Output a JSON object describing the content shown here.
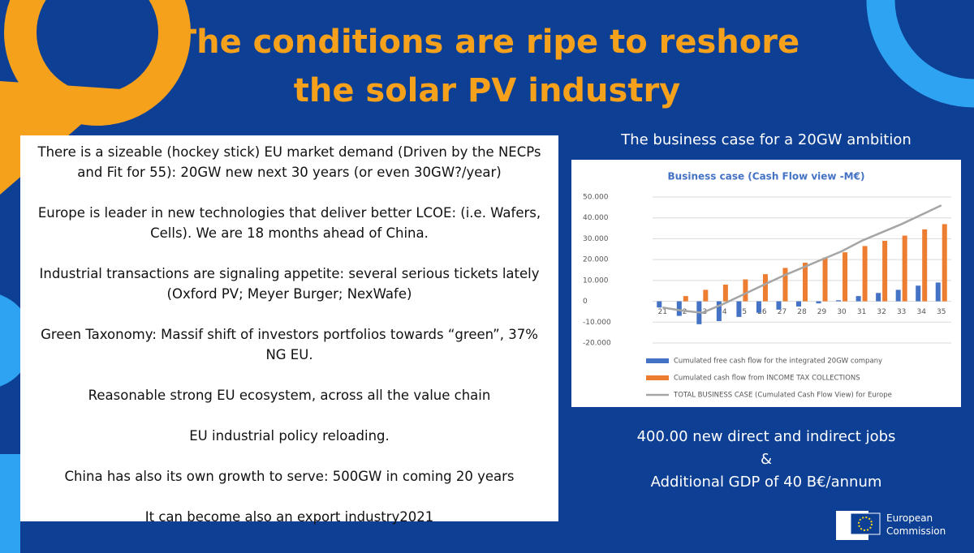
{
  "header": {
    "title_lines": [
      "The conditions are ripe to reshore",
      "the solar PV industry"
    ]
  },
  "text_box": {
    "paragraphs": [
      "There is a sizeable (hockey stick) EU market demand (Driven by the NECPs and Fit for 55): 20GW new next 30 years (or even 30GW?/year)",
      "Europe is leader in new technologies that deliver better LCOE: (i.e. Wafers, Cells). We are 18 months ahead of China.",
      "Industrial transactions are signaling appetite: several serious tickets lately (Oxford PV; Meyer Burger; NexWafe)",
      "Green Taxonomy: Massif shift of investors portfolios towards “green”, 37% NG EU.",
      "Reasonable strong EU ecosystem, across all the value chain",
      "EU industrial policy reloading.",
      "China has also its own growth to serve: 500GW in coming 20 years",
      "It can become also an export industry2021"
    ]
  },
  "chart_heading": "The business case for a 20GW ambition",
  "chart_data": {
    "type": "bar-line",
    "title": "Business case (Cash Flow view -M€)",
    "categories": [
      "21",
      "22",
      "23",
      "24",
      "25",
      "26",
      "27",
      "28",
      "29",
      "30",
      "31",
      "32",
      "33",
      "34",
      "35"
    ],
    "series": [
      {
        "name": "Cumulated free cash flow for the integrated 20GW company",
        "type": "bar",
        "color": "#4472c4",
        "values": [
          -3000,
          -7000,
          -11000,
          -9500,
          -7500,
          -5500,
          -4000,
          -2500,
          -1000,
          500,
          2500,
          4000,
          5500,
          7500,
          9000
        ]
      },
      {
        "name": "Cumulated cash flow from INCOME TAX COLLECTIONS",
        "type": "bar",
        "color": "#ed7d31",
        "values": [
          0,
          2500,
          5500,
          8000,
          10500,
          13000,
          16000,
          18500,
          21000,
          23500,
          26500,
          29000,
          31500,
          34500,
          37000
        ]
      },
      {
        "name": "TOTAL BUSINESS CASE (Cumulated Cash Flow View) for Europe",
        "type": "line",
        "color": "#a5a5a5",
        "values": [
          -3000,
          -4500,
          -5500,
          -1500,
          3000,
          7500,
          12000,
          16000,
          20000,
          24000,
          29000,
          33000,
          37000,
          41500,
          46000
        ]
      }
    ],
    "ylim": [
      -20000,
      50000
    ],
    "yticks": [
      {
        "value": -20000,
        "label": "-20.000"
      },
      {
        "value": -10000,
        "label": "-10.000"
      },
      0,
      {
        "value": 10000,
        "label": "10.000"
      },
      {
        "value": 20000,
        "label": "20.000"
      },
      {
        "value": 30000,
        "label": "30.000"
      },
      {
        "value": 40000,
        "label": "40.000"
      },
      {
        "value": 50000,
        "label": "50.000"
      }
    ],
    "grid": true
  },
  "summary": [
    "400.00 new direct and indirect jobs",
    "&",
    "Additional GDP of 40 B€/annum"
  ],
  "logo": [
    "European",
    "Commission"
  ]
}
